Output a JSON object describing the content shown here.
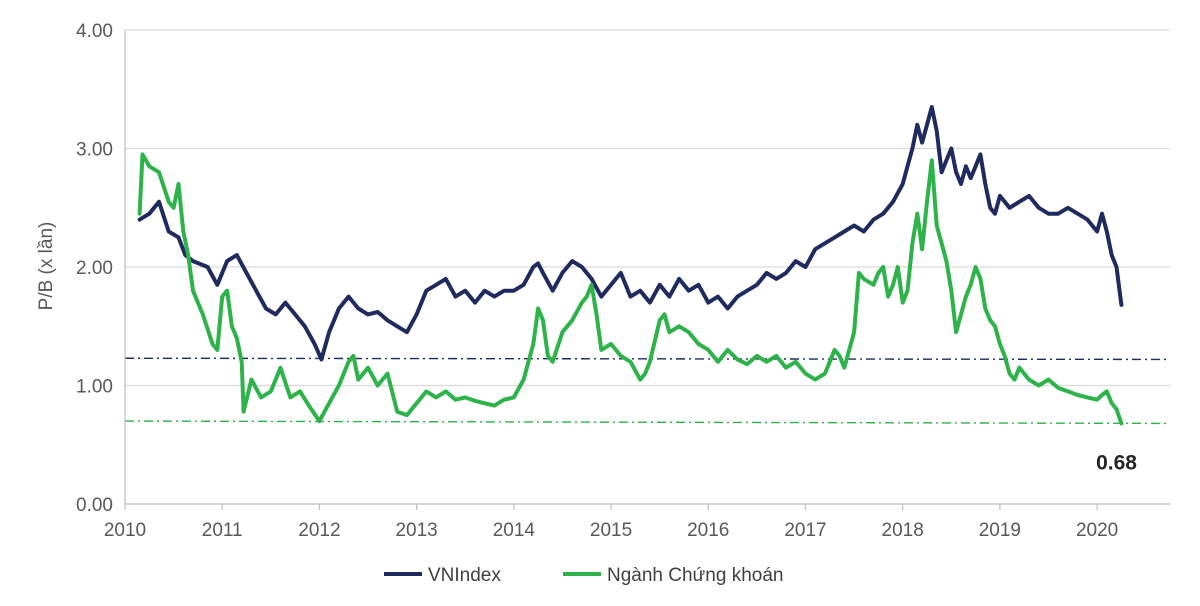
{
  "chart_data": {
    "type": "line",
    "title": "",
    "xlabel": "",
    "ylabel": "P/B (x lần)",
    "xlim": [
      2010,
      2020.75
    ],
    "ylim": [
      0,
      4
    ],
    "x_ticks": [
      "2010",
      "2011",
      "2012",
      "2013",
      "2014",
      "2015",
      "2016",
      "2017",
      "2018",
      "2019",
      "2020"
    ],
    "y_ticks": [
      "0.00",
      "1.00",
      "2.00",
      "3.00",
      "4.00"
    ],
    "grid": "horizontal",
    "legend_position": "bottom",
    "series": [
      {
        "name": "VNIndex",
        "color": "#1f2a5e",
        "x": [
          2010.15,
          2010.25,
          2010.35,
          2010.45,
          2010.55,
          2010.62,
          2010.7,
          2010.85,
          2010.95,
          2011.05,
          2011.15,
          2011.25,
          2011.35,
          2011.45,
          2011.55,
          2011.65,
          2011.75,
          2011.85,
          2011.95,
          2012.02,
          2012.1,
          2012.2,
          2012.3,
          2012.4,
          2012.5,
          2012.6,
          2012.7,
          2012.8,
          2012.9,
          2013.0,
          2013.1,
          2013.2,
          2013.3,
          2013.4,
          2013.5,
          2013.6,
          2013.7,
          2013.8,
          2013.9,
          2014.0,
          2014.1,
          2014.2,
          2014.25,
          2014.3,
          2014.4,
          2014.5,
          2014.6,
          2014.7,
          2014.8,
          2014.9,
          2015.0,
          2015.1,
          2015.2,
          2015.3,
          2015.4,
          2015.5,
          2015.6,
          2015.7,
          2015.8,
          2015.9,
          2016.0,
          2016.1,
          2016.2,
          2016.3,
          2016.4,
          2016.5,
          2016.6,
          2016.7,
          2016.8,
          2016.9,
          2017.0,
          2017.1,
          2017.2,
          2017.3,
          2017.4,
          2017.5,
          2017.6,
          2017.7,
          2017.8,
          2017.9,
          2018.0,
          2018.05,
          2018.1,
          2018.15,
          2018.2,
          2018.25,
          2018.3,
          2018.35,
          2018.4,
          2018.45,
          2018.5,
          2018.55,
          2018.6,
          2018.65,
          2018.7,
          2018.75,
          2018.8,
          2018.85,
          2018.9,
          2018.95,
          2019.0,
          2019.1,
          2019.2,
          2019.3,
          2019.4,
          2019.5,
          2019.6,
          2019.7,
          2019.8,
          2019.9,
          2019.95,
          2020.0,
          2020.05,
          2020.1,
          2020.15,
          2020.2,
          2020.25
        ],
        "y": [
          2.4,
          2.45,
          2.55,
          2.3,
          2.25,
          2.1,
          2.05,
          2.0,
          1.85,
          2.05,
          2.1,
          1.95,
          1.8,
          1.65,
          1.6,
          1.7,
          1.6,
          1.5,
          1.35,
          1.22,
          1.45,
          1.65,
          1.75,
          1.65,
          1.6,
          1.62,
          1.55,
          1.5,
          1.45,
          1.6,
          1.8,
          1.85,
          1.9,
          1.75,
          1.8,
          1.7,
          1.8,
          1.75,
          1.8,
          1.8,
          1.85,
          2.0,
          2.03,
          1.95,
          1.8,
          1.95,
          2.05,
          2.0,
          1.9,
          1.75,
          1.85,
          1.95,
          1.75,
          1.8,
          1.7,
          1.85,
          1.75,
          1.9,
          1.8,
          1.85,
          1.7,
          1.75,
          1.65,
          1.75,
          1.8,
          1.85,
          1.95,
          1.9,
          1.95,
          2.05,
          2.0,
          2.15,
          2.2,
          2.25,
          2.3,
          2.35,
          2.3,
          2.4,
          2.45,
          2.55,
          2.7,
          2.85,
          3.0,
          3.2,
          3.05,
          3.2,
          3.35,
          3.15,
          2.8,
          2.9,
          3.0,
          2.8,
          2.7,
          2.85,
          2.75,
          2.85,
          2.95,
          2.7,
          2.5,
          2.45,
          2.6,
          2.5,
          2.55,
          2.6,
          2.5,
          2.45,
          2.45,
          2.5,
          2.45,
          2.4,
          2.35,
          2.3,
          2.45,
          2.3,
          2.1,
          2.0,
          1.68
        ]
      },
      {
        "name": "Ngành Chứng khoán",
        "color": "#2db34a",
        "x": [
          2010.15,
          2010.18,
          2010.25,
          2010.35,
          2010.45,
          2010.5,
          2010.55,
          2010.6,
          2010.65,
          2010.7,
          2010.8,
          2010.9,
          2010.95,
          2011.0,
          2011.05,
          2011.1,
          2011.15,
          2011.2,
          2011.22,
          2011.3,
          2011.4,
          2011.5,
          2011.6,
          2011.7,
          2011.8,
          2011.9,
          2012.0,
          2012.1,
          2012.2,
          2012.3,
          2012.35,
          2012.4,
          2012.5,
          2012.6,
          2012.7,
          2012.8,
          2012.9,
          2013.0,
          2013.1,
          2013.2,
          2013.3,
          2013.4,
          2013.5,
          2013.6,
          2013.7,
          2013.8,
          2013.9,
          2014.0,
          2014.1,
          2014.2,
          2014.25,
          2014.3,
          2014.35,
          2014.4,
          2014.5,
          2014.6,
          2014.7,
          2014.75,
          2014.8,
          2014.85,
          2014.9,
          2015.0,
          2015.1,
          2015.2,
          2015.3,
          2015.35,
          2015.4,
          2015.5,
          2015.55,
          2015.6,
          2015.7,
          2015.8,
          2015.9,
          2016.0,
          2016.1,
          2016.2,
          2016.3,
          2016.4,
          2016.5,
          2016.6,
          2016.7,
          2016.8,
          2016.9,
          2017.0,
          2017.1,
          2017.2,
          2017.25,
          2017.3,
          2017.35,
          2017.4,
          2017.5,
          2017.55,
          2017.6,
          2017.7,
          2017.75,
          2017.8,
          2017.85,
          2017.9,
          2017.95,
          2018.0,
          2018.05,
          2018.1,
          2018.15,
          2018.2,
          2018.25,
          2018.3,
          2018.35,
          2018.4,
          2018.45,
          2018.5,
          2018.55,
          2018.6,
          2018.65,
          2018.7,
          2018.75,
          2018.8,
          2018.85,
          2018.9,
          2018.95,
          2019.0,
          2019.05,
          2019.1,
          2019.15,
          2019.2,
          2019.3,
          2019.4,
          2019.5,
          2019.6,
          2019.7,
          2019.8,
          2019.9,
          2020.0,
          2020.05,
          2020.1,
          2020.15,
          2020.2,
          2020.25
        ],
        "y": [
          2.45,
          2.95,
          2.85,
          2.8,
          2.55,
          2.5,
          2.7,
          2.3,
          2.1,
          1.8,
          1.6,
          1.35,
          1.3,
          1.75,
          1.8,
          1.5,
          1.4,
          1.2,
          0.78,
          1.05,
          0.9,
          0.95,
          1.15,
          0.9,
          0.95,
          0.82,
          0.7,
          0.85,
          1.0,
          1.2,
          1.25,
          1.05,
          1.15,
          1.0,
          1.1,
          0.78,
          0.75,
          0.85,
          0.95,
          0.9,
          0.95,
          0.88,
          0.9,
          0.87,
          0.85,
          0.83,
          0.88,
          0.9,
          1.05,
          1.35,
          1.65,
          1.55,
          1.25,
          1.2,
          1.45,
          1.55,
          1.7,
          1.75,
          1.85,
          1.6,
          1.3,
          1.35,
          1.25,
          1.2,
          1.05,
          1.1,
          1.2,
          1.55,
          1.6,
          1.45,
          1.5,
          1.45,
          1.35,
          1.3,
          1.2,
          1.3,
          1.22,
          1.18,
          1.25,
          1.2,
          1.25,
          1.15,
          1.2,
          1.1,
          1.05,
          1.1,
          1.2,
          1.3,
          1.25,
          1.15,
          1.45,
          1.95,
          1.9,
          1.85,
          1.95,
          2.0,
          1.75,
          1.85,
          2.0,
          1.7,
          1.8,
          2.2,
          2.45,
          2.15,
          2.55,
          2.9,
          2.35,
          2.2,
          2.05,
          1.8,
          1.45,
          1.6,
          1.75,
          1.85,
          2.0,
          1.9,
          1.65,
          1.55,
          1.5,
          1.35,
          1.25,
          1.1,
          1.05,
          1.15,
          1.05,
          1.0,
          1.05,
          0.98,
          0.95,
          0.92,
          0.9,
          0.88,
          0.92,
          0.95,
          0.85,
          0.8,
          0.68
        ]
      }
    ],
    "reference_lines": [
      {
        "name": "VNIndex reference",
        "y": 1.23,
        "y_end": 1.22,
        "color": "#1f2a5e",
        "style": "dash-dot"
      },
      {
        "name": "Ngành Chứng khoán reference",
        "y": 0.7,
        "y_end": 0.68,
        "color": "#2db34a",
        "style": "dash-dot"
      }
    ],
    "annotations": [
      {
        "text": "0.68",
        "x": 2020.2,
        "y": 0.68
      }
    ]
  }
}
